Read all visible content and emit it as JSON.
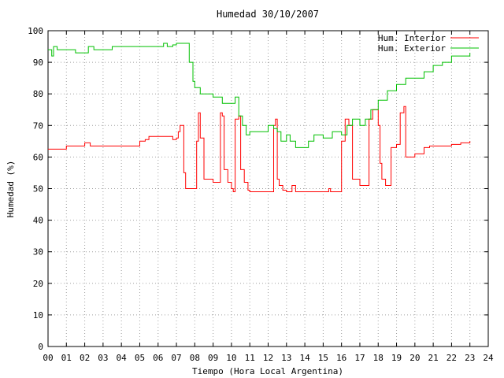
{
  "chart_data": {
    "type": "line",
    "title": "Humedad 30/10/2007",
    "xlabel": "Tiempo (Hora Local Argentina)",
    "ylabel": "Humedad (%)",
    "xlim": [
      0,
      24
    ],
    "ylim": [
      0,
      100
    ],
    "grid": true,
    "legend_position": "top-right",
    "x_ticks": [
      "00",
      "01",
      "02",
      "03",
      "04",
      "05",
      "06",
      "07",
      "08",
      "09",
      "10",
      "11",
      "12",
      "13",
      "14",
      "15",
      "16",
      "17",
      "18",
      "19",
      "20",
      "21",
      "22",
      "23",
      "24"
    ],
    "y_ticks": [
      "0",
      "10",
      "20",
      "30",
      "40",
      "50",
      "60",
      "70",
      "80",
      "90",
      "100"
    ],
    "series": [
      {
        "name": "Hum. Interior",
        "color": "#ff0000",
        "x": [
          0.0,
          0.5,
          1.0,
          1.5,
          2.0,
          2.3,
          2.5,
          3.0,
          3.5,
          4.0,
          4.5,
          5.0,
          5.3,
          5.5,
          6.0,
          6.5,
          6.8,
          7.0,
          7.1,
          7.2,
          7.4,
          7.5,
          7.7,
          8.0,
          8.1,
          8.2,
          8.3,
          8.5,
          9.0,
          9.3,
          9.4,
          9.5,
          9.6,
          9.8,
          10.0,
          10.1,
          10.2,
          10.4,
          10.5,
          10.7,
          10.9,
          11.0,
          11.4,
          11.7,
          12.0,
          12.3,
          12.4,
          12.5,
          12.6,
          12.8,
          13.0,
          13.3,
          13.5,
          14.0,
          14.5,
          15.0,
          15.3,
          15.4,
          15.5,
          15.6,
          15.8,
          16.0,
          16.2,
          16.4,
          16.6,
          17.0,
          17.2,
          17.4,
          17.5,
          17.7,
          18.0,
          18.1,
          18.2,
          18.4,
          18.5,
          18.7,
          19.0,
          19.2,
          19.4,
          19.5,
          19.7,
          20.0,
          20.5,
          20.8,
          21.0,
          21.5,
          22.0,
          22.5,
          23.0
        ],
        "values": [
          62.5,
          62.5,
          63.5,
          63.5,
          64.5,
          63.5,
          63.5,
          63.5,
          63.5,
          63.5,
          63.5,
          65,
          65.5,
          66.5,
          66.5,
          66.5,
          65.5,
          66,
          68,
          70,
          55,
          50,
          50,
          50,
          65,
          74,
          66,
          53,
          52,
          52,
          74,
          73,
          56,
          52,
          50,
          49,
          72,
          73,
          56,
          52,
          49.5,
          49,
          49,
          49,
          49,
          70,
          72,
          53,
          51,
          49.5,
          49,
          51,
          49,
          49,
          49,
          49,
          50,
          49,
          49,
          49,
          49,
          65,
          72,
          70,
          53,
          51,
          51,
          51,
          72,
          75,
          70,
          58,
          53,
          51,
          51,
          63,
          64,
          74,
          76,
          60,
          60,
          61,
          63,
          63.5,
          63.5,
          63.5,
          64,
          64.5,
          65
        ]
      },
      {
        "name": "Hum. Exterior",
        "color": "#00c000",
        "x": [
          0.0,
          0.2,
          0.3,
          0.5,
          1.0,
          1.5,
          2.0,
          2.2,
          2.5,
          3.0,
          3.5,
          4.0,
          5.0,
          6.0,
          6.3,
          6.5,
          6.8,
          7.0,
          7.5,
          7.7,
          7.9,
          8.0,
          8.3,
          8.5,
          9.0,
          9.2,
          9.5,
          10.0,
          10.2,
          10.4,
          10.6,
          10.8,
          11.0,
          11.3,
          11.6,
          12.0,
          12.3,
          12.5,
          12.7,
          13.0,
          13.2,
          13.5,
          14.0,
          14.2,
          14.5,
          15.0,
          15.5,
          16.0,
          16.3,
          16.6,
          17.0,
          17.3,
          17.6,
          18.0,
          18.5,
          19.0,
          19.5,
          20.0,
          20.5,
          21.0,
          21.5,
          22.0,
          22.5,
          23.0
        ],
        "values": [
          94,
          92,
          95,
          94,
          94,
          93,
          93,
          95,
          94,
          94,
          95,
          95,
          95,
          95,
          96,
          95,
          95.5,
          96,
          96,
          90,
          84,
          82,
          80,
          80,
          79,
          79,
          77,
          77,
          79,
          73,
          70,
          67,
          68,
          68,
          68,
          70,
          69,
          68,
          65,
          67,
          65,
          63,
          63,
          65,
          67,
          66,
          68,
          67,
          70,
          72,
          70,
          72,
          75,
          78,
          81,
          83,
          85,
          85,
          87,
          89,
          90,
          92,
          92,
          93
        ]
      }
    ]
  }
}
